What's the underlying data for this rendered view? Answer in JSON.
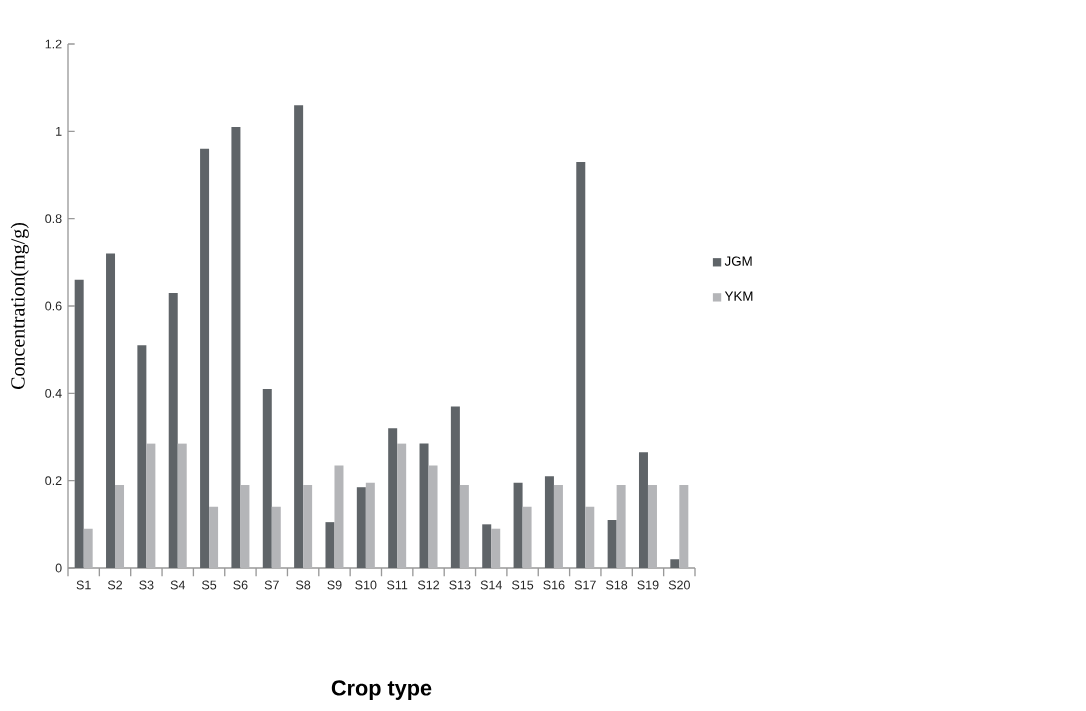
{
  "chart_data": {
    "type": "bar",
    "xlabel": "Crop type",
    "ylabel": "Concentration(mg/g)",
    "categories": [
      "S1",
      "S2",
      "S3",
      "S4",
      "S5",
      "S6",
      "S7",
      "S8",
      "S9",
      "S10",
      "S11",
      "S12",
      "S13",
      "S14",
      "S15",
      "S16",
      "S17",
      "S18",
      "S19",
      "S20"
    ],
    "series": [
      {
        "name": "JGM",
        "color": "#5f6468",
        "values": [
          0.66,
          0.72,
          0.51,
          0.63,
          0.96,
          1.01,
          0.41,
          1.06,
          0.105,
          0.185,
          0.32,
          0.285,
          0.37,
          0.1,
          0.195,
          0.21,
          0.93,
          0.11,
          0.265,
          0.02
        ]
      },
      {
        "name": "YKM",
        "color": "#b4b5b8",
        "values": [
          0.09,
          0.19,
          0.285,
          0.285,
          0.14,
          0.19,
          0.14,
          0.19,
          0.235,
          0.195,
          0.285,
          0.235,
          0.19,
          0.09,
          0.14,
          0.19,
          0.14,
          0.19,
          0.19,
          0.19
        ]
      }
    ],
    "ylim": [
      0,
      1.2
    ],
    "yticks": [
      0,
      0.2,
      0.4,
      0.6,
      0.8,
      1,
      1.2
    ],
    "legend": "right"
  }
}
